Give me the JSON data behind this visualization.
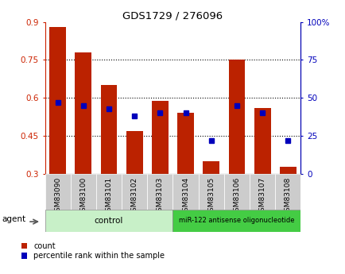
{
  "title": "GDS1729 / 276096",
  "samples": [
    "GSM83090",
    "GSM83100",
    "GSM83101",
    "GSM83102",
    "GSM83103",
    "GSM83104",
    "GSM83105",
    "GSM83106",
    "GSM83107",
    "GSM83108"
  ],
  "count_values": [
    0.88,
    0.78,
    0.65,
    0.47,
    0.59,
    0.54,
    0.35,
    0.75,
    0.56,
    0.33
  ],
  "percentile_values": [
    47,
    45,
    43,
    38,
    40,
    40,
    22,
    45,
    40,
    22
  ],
  "ylim_left": [
    0.3,
    0.9
  ],
  "ylim_right": [
    0,
    100
  ],
  "yticks_left": [
    0.3,
    0.45,
    0.6,
    0.75,
    0.9
  ],
  "ytick_labels_left": [
    "0.3",
    "0.45",
    "0.6",
    "0.75",
    "0.9"
  ],
  "yticks_right": [
    0,
    25,
    50,
    75,
    100
  ],
  "ytick_labels_right": [
    "0",
    "25",
    "50",
    "75",
    "100%"
  ],
  "bar_color": "#bb2200",
  "dot_color": "#0000bb",
  "bar_bottom": 0.3,
  "group1_label": "control",
  "group1_color": "#c8f0c8",
  "group2_label": "miR-122 antisense oligonucleotide",
  "group2_color": "#44cc44",
  "agent_label": "agent",
  "legend_count_label": "count",
  "legend_percentile_label": "percentile rank within the sample",
  "axis_color_left": "#cc2200",
  "axis_color_right": "#0000bb",
  "bg_color": "#ffffff",
  "xtick_bg": "#cccccc",
  "border_color": "#888888"
}
